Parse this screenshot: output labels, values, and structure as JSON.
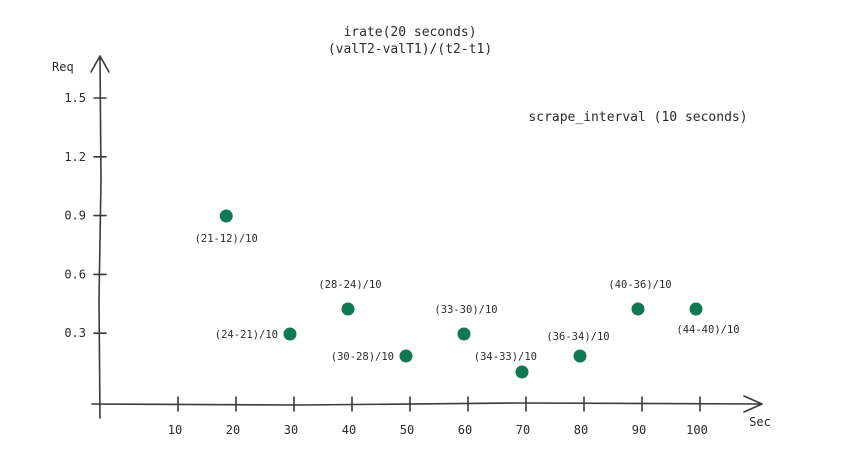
{
  "chart_data": {
    "type": "scatter",
    "title": "irate(20 seconds)",
    "subtitle": "(valT2-valT1)/(t2-t1)",
    "annotation": "scrape_interval (10 seconds)",
    "xlabel": "Sec",
    "ylabel": "Req",
    "x_ticks": [
      "10",
      "20",
      "30",
      "40",
      "50",
      "60",
      "70",
      "80",
      "90",
      "100"
    ],
    "y_ticks": [
      "1.5",
      "1.2",
      "0.9",
      "0.6",
      "0.3"
    ],
    "grid": false,
    "point_color": "#0f7a52",
    "points": [
      {
        "x": 19,
        "y": 0.9,
        "label": "(21-12)/10"
      },
      {
        "x": 30,
        "y": 0.3,
        "label": "(24-21)/10"
      },
      {
        "x": 40,
        "y": 0.4,
        "label": "(28-24)/10"
      },
      {
        "x": 50,
        "y": 0.2,
        "label": "(30-28)/10"
      },
      {
        "x": 60,
        "y": 0.3,
        "label": "(33-30)/10"
      },
      {
        "x": 70,
        "y": 0.1,
        "label": "(34-33)/10"
      },
      {
        "x": 80,
        "y": 0.2,
        "label": "(36-34)/10"
      },
      {
        "x": 90,
        "y": 0.4,
        "label": "(40-36)/10"
      },
      {
        "x": 100,
        "y": 0.4,
        "label": "(44-40)/10"
      }
    ]
  }
}
